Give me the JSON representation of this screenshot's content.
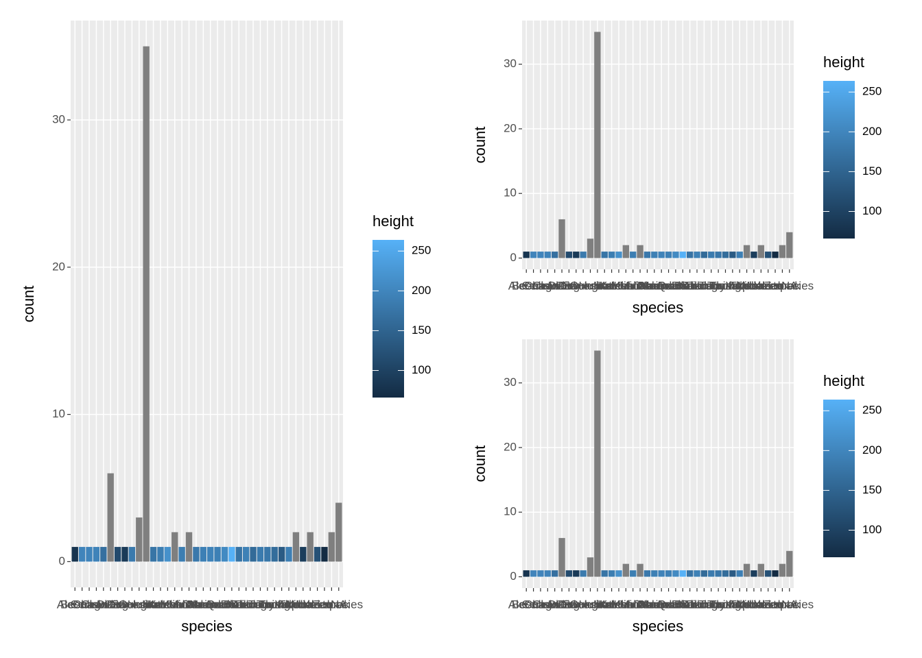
{
  "chart_data": [
    {
      "type": "bar",
      "x_label": "species",
      "y_label": "count",
      "legend_title": "height",
      "categories": [
        "Aleena",
        "Besalisk",
        "Cerean",
        "Chagrian",
        "Clawdite",
        "Droid",
        "Dug",
        "Ewok",
        "Geonosian",
        "Gungan",
        "Human",
        "Hutt",
        "Iktotchi",
        "Kaleesh",
        "Kaminoan",
        "Kel Dor",
        "Mirialan",
        "Mon Calamari",
        "Muun",
        "Nautolan",
        "Neimodian",
        "Pau'an",
        "Quermian",
        "Rodian",
        "Skakoan",
        "Sullustan",
        "Tholothian",
        "Togruta",
        "Toong",
        "Toydarian",
        "Trandoshan",
        "Twi'lek",
        "Vulptereen",
        "Wookiee",
        "Xexto",
        "Yoda's species",
        "Zabrak",
        "NA"
      ],
      "values": [
        1,
        1,
        1,
        1,
        1,
        6,
        1,
        1,
        1,
        3,
        35,
        1,
        1,
        1,
        2,
        1,
        2,
        1,
        1,
        1,
        1,
        1,
        1,
        1,
        1,
        1,
        1,
        1,
        1,
        1,
        1,
        2,
        1,
        2,
        1,
        1,
        2,
        4
      ],
      "heights": [
        79,
        198,
        198,
        196,
        168,
        null,
        112,
        88,
        183,
        null,
        null,
        175,
        188,
        216,
        null,
        188,
        null,
        180,
        191,
        196,
        191,
        206,
        264,
        173,
        193,
        160,
        184,
        178,
        163,
        137,
        190,
        null,
        94,
        null,
        122,
        66,
        null,
        null
      ],
      "fill_lim": [
        66,
        264
      ],
      "color_low": "#132B43",
      "color_high": "#56B1F7",
      "na_color": "#7F7F7F",
      "legend_ticks": [
        100,
        150,
        200,
        250
      ],
      "ylim": [
        -1.75,
        36.75
      ],
      "yticks": [
        0,
        10,
        20,
        30
      ],
      "grid": true
    },
    {
      "type": "bar",
      "x_label": "species",
      "y_label": "count",
      "legend_title": "height",
      "categories": [
        "Aleena",
        "Besalisk",
        "Cerean",
        "Chagrian",
        "Clawdite",
        "Droid",
        "Dug",
        "Ewok",
        "Geonosian",
        "Gungan",
        "Human",
        "Hutt",
        "Iktotchi",
        "Kaleesh",
        "Kaminoan",
        "Kel Dor",
        "Mirialan",
        "Mon Calamari",
        "Muun",
        "Nautolan",
        "Neimodian",
        "Pau'an",
        "Quermian",
        "Rodian",
        "Skakoan",
        "Sullustan",
        "Tholothian",
        "Togruta",
        "Toong",
        "Toydarian",
        "Trandoshan",
        "Twi'lek",
        "Vulptereen",
        "Wookiee",
        "Xexto",
        "Yoda's species",
        "Zabrak",
        "NA"
      ],
      "values": [
        1,
        1,
        1,
        1,
        1,
        6,
        1,
        1,
        1,
        3,
        35,
        1,
        1,
        1,
        2,
        1,
        2,
        1,
        1,
        1,
        1,
        1,
        1,
        1,
        1,
        1,
        1,
        1,
        1,
        1,
        1,
        2,
        1,
        2,
        1,
        1,
        2,
        4
      ],
      "heights": [
        79,
        198,
        198,
        196,
        168,
        null,
        112,
        88,
        183,
        null,
        null,
        175,
        188,
        216,
        null,
        188,
        null,
        180,
        191,
        196,
        191,
        206,
        264,
        173,
        193,
        160,
        184,
        178,
        163,
        137,
        190,
        null,
        94,
        null,
        122,
        66,
        null,
        null
      ],
      "fill_lim": [
        66,
        264
      ],
      "color_low": "#132B43",
      "color_high": "#56B1F7",
      "na_color": "#7F7F7F",
      "legend_ticks": [
        100,
        150,
        200,
        250
      ],
      "ylim": [
        -1.75,
        36.75
      ],
      "yticks": [
        0,
        10,
        20,
        30
      ],
      "grid": true
    },
    {
      "type": "bar",
      "x_label": "species",
      "y_label": "count",
      "legend_title": "height",
      "categories": [
        "Aleena",
        "Besalisk",
        "Cerean",
        "Chagrian",
        "Clawdite",
        "Droid",
        "Dug",
        "Ewok",
        "Geonosian",
        "Gungan",
        "Human",
        "Hutt",
        "Iktotchi",
        "Kaleesh",
        "Kaminoan",
        "Kel Dor",
        "Mirialan",
        "Mon Calamari",
        "Muun",
        "Nautolan",
        "Neimodian",
        "Pau'an",
        "Quermian",
        "Rodian",
        "Skakoan",
        "Sullustan",
        "Tholothian",
        "Togruta",
        "Toong",
        "Toydarian",
        "Trandoshan",
        "Twi'lek",
        "Vulptereen",
        "Wookiee",
        "Xexto",
        "Yoda's species",
        "Zabrak",
        "NA"
      ],
      "values": [
        1,
        1,
        1,
        1,
        1,
        6,
        1,
        1,
        1,
        3,
        35,
        1,
        1,
        1,
        2,
        1,
        2,
        1,
        1,
        1,
        1,
        1,
        1,
        1,
        1,
        1,
        1,
        1,
        1,
        1,
        1,
        2,
        1,
        2,
        1,
        1,
        2,
        4
      ],
      "heights": [
        79,
        198,
        198,
        196,
        168,
        null,
        112,
        88,
        183,
        null,
        null,
        175,
        188,
        216,
        null,
        188,
        null,
        180,
        191,
        196,
        191,
        206,
        264,
        173,
        193,
        160,
        184,
        178,
        163,
        137,
        190,
        null,
        94,
        null,
        122,
        66,
        null,
        null
      ],
      "fill_lim": [
        66,
        264
      ],
      "color_low": "#132B43",
      "color_high": "#56B1F7",
      "na_color": "#7F7F7F",
      "legend_ticks": [
        100,
        150,
        200,
        250
      ],
      "ylim": [
        -1.75,
        36.75
      ],
      "yticks": [
        0,
        10,
        20,
        30
      ],
      "grid": true
    }
  ]
}
